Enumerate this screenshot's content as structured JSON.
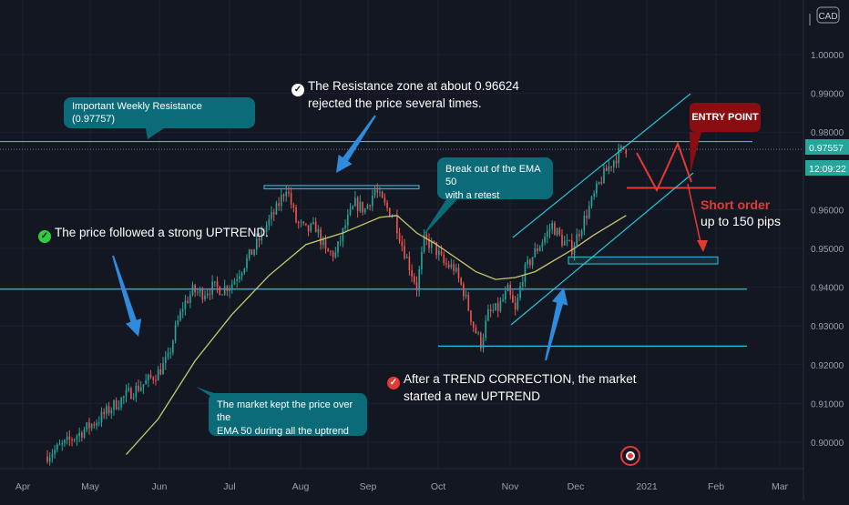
{
  "colors": {
    "background": "#131722",
    "up": "#26a69a",
    "down": "#ef5350",
    "ema": "#c8c86e",
    "cyan": "#26c6da",
    "callout": "#0b6b78",
    "entry": "#8a0d12",
    "red": "#e53935",
    "arrow": "#2f8cdc"
  },
  "chart_data": {
    "type": "candlestick",
    "x_ticks": [
      "Apr",
      "May",
      "Jun",
      "Jul",
      "Aug",
      "Sep",
      "Oct",
      "Nov",
      "Dec",
      "2021",
      "Feb",
      "Mar"
    ],
    "y_ticks": [
      "0.90000",
      "0.91000",
      "0.92000",
      "0.93000",
      "0.94000",
      "0.95000",
      "0.96000",
      "0.97000",
      "0.98000",
      "0.99000",
      "1.00000"
    ],
    "y_range": [
      0.8964,
      1.004
    ],
    "currency": "CAD",
    "last_price": "0.97557",
    "countdown": "12:09:22",
    "close_path": [
      [
        0,
        0.8963
      ],
      [
        8,
        0.8995
      ],
      [
        16,
        0.9032
      ],
      [
        22,
        0.906
      ],
      [
        28,
        0.9095
      ],
      [
        34,
        0.9125
      ],
      [
        40,
        0.915
      ],
      [
        46,
        0.918
      ],
      [
        50,
        0.9215
      ],
      [
        53,
        0.929
      ],
      [
        56,
        0.935
      ],
      [
        60,
        0.939
      ],
      [
        64,
        0.9385
      ],
      [
        68,
        0.94
      ],
      [
        72,
        0.9395
      ],
      [
        76,
        0.941
      ],
      [
        80,
        0.945
      ],
      [
        86,
        0.951
      ],
      [
        90,
        0.956
      ],
      [
        94,
        0.96
      ],
      [
        98,
        0.966
      ],
      [
        102,
        0.957
      ],
      [
        106,
        0.9545
      ],
      [
        110,
        0.9555
      ],
      [
        114,
        0.949
      ],
      [
        118,
        0.9485
      ],
      [
        122,
        0.956
      ],
      [
        126,
        0.9615
      ],
      [
        130,
        0.96
      ],
      [
        134,
        0.965
      ],
      [
        138,
        0.961
      ],
      [
        142,
        0.958
      ],
      [
        145,
        0.951
      ],
      [
        148,
        0.9455
      ],
      [
        151,
        0.94
      ],
      [
        154,
        0.952
      ],
      [
        158,
        0.9505
      ],
      [
        162,
        0.946
      ],
      [
        166,
        0.945
      ],
      [
        170,
        0.939
      ],
      [
        174,
        0.93
      ],
      [
        177,
        0.9255
      ],
      [
        180,
        0.933
      ],
      [
        184,
        0.9345
      ],
      [
        188,
        0.939
      ],
      [
        191,
        0.9335
      ],
      [
        194,
        0.943
      ],
      [
        198,
        0.948
      ],
      [
        202,
        0.952
      ],
      [
        206,
        0.956
      ],
      [
        210,
        0.952
      ],
      [
        214,
        0.95
      ],
      [
        218,
        0.956
      ],
      [
        222,
        0.962
      ],
      [
        226,
        0.968
      ],
      [
        230,
        0.972
      ],
      [
        233,
        0.9745
      ],
      [
        235,
        0.9758
      ]
    ],
    "ema50": [
      [
        32,
        0.8968
      ],
      [
        45,
        0.906
      ],
      [
        60,
        0.921
      ],
      [
        75,
        0.933
      ],
      [
        90,
        0.943
      ],
      [
        105,
        0.951
      ],
      [
        120,
        0.954
      ],
      [
        135,
        0.958
      ],
      [
        142,
        0.9585
      ],
      [
        150,
        0.954
      ],
      [
        158,
        0.951
      ],
      [
        166,
        0.9475
      ],
      [
        174,
        0.944
      ],
      [
        182,
        0.942
      ],
      [
        190,
        0.9425
      ],
      [
        198,
        0.944
      ],
      [
        206,
        0.947
      ],
      [
        214,
        0.95
      ],
      [
        222,
        0.9535
      ],
      [
        235,
        0.9585
      ]
    ],
    "levels": {
      "weekly_resistance": 0.97757,
      "resistance_zone": [
        0.96624,
        0.96535
      ],
      "support_line": 0.9395,
      "correction_low": 0.9248,
      "target_zone": [
        0.9478,
        0.946
      ],
      "entry_zone": 0.9656
    }
  },
  "annotations": {
    "weekly_resistance": "Important Weekly Resistance (0.97757)",
    "resistance_zone_line1": "The Resistance zone at about 0.96624",
    "resistance_zone_line2": "rejected the price several times.",
    "uptrend": "The price followed a strong UPTREND.",
    "breakout_line1": "Break out of the EMA 50",
    "breakout_line2": "with a retest",
    "ema_line1": "The market kept the price over the",
    "ema_line2": "EMA 50 during all the uptrend",
    "correction_line1": "After a TREND CORRECTION, the market",
    "correction_line2": "started a new UPTREND",
    "entry_point": "ENTRY POINT",
    "short_order_line1": "Short order",
    "short_order_line2": "up to 150 pips"
  },
  "icons": {
    "check": "check-circle-icon",
    "warning": "warning-circle-icon",
    "ideas": "ideas-logo-icon"
  }
}
